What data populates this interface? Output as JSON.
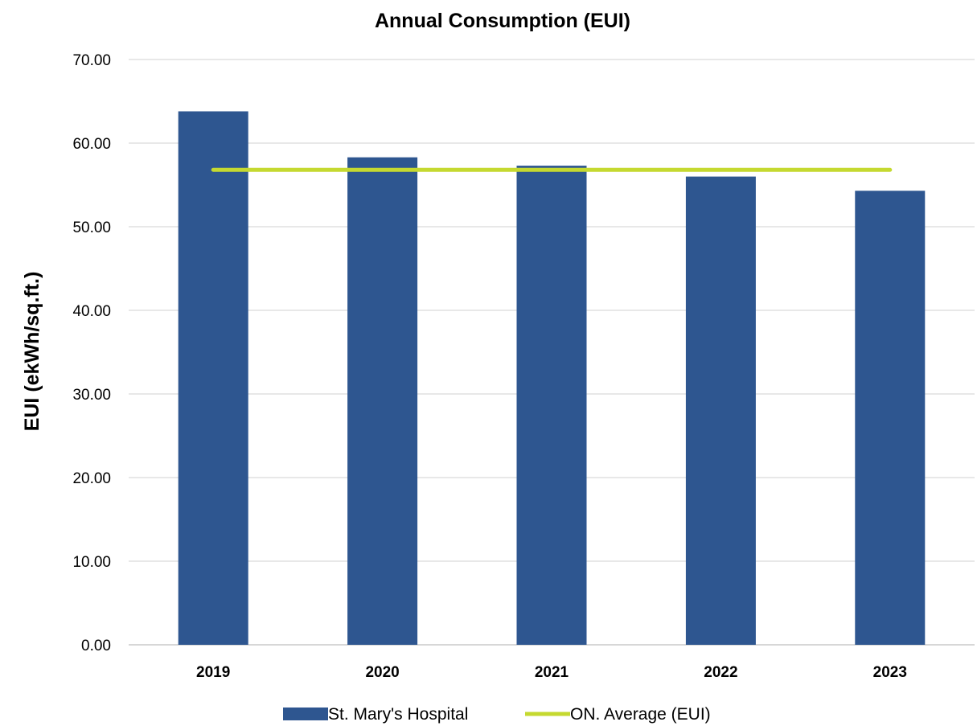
{
  "chart_data": {
    "type": "bar",
    "title": "Annual Consumption (EUI)",
    "xlabel": "",
    "ylabel": "EUI (ekWh/sq.ft.)",
    "categories": [
      "2019",
      "2020",
      "2021",
      "2022",
      "2023"
    ],
    "series": [
      {
        "name": "St. Mary's Hospital",
        "type": "bar",
        "color": "#2e5690",
        "values": [
          63.8,
          58.3,
          57.3,
          56.0,
          54.3
        ]
      },
      {
        "name": "ON. Average (EUI)",
        "type": "line",
        "color": "#c5d930",
        "values": [
          56.8,
          56.8,
          56.8,
          56.8,
          56.8
        ]
      }
    ],
    "ylim": [
      0,
      70
    ],
    "yticks": [
      "0.00",
      "10.00",
      "20.00",
      "30.00",
      "40.00",
      "50.00",
      "60.00",
      "70.00"
    ],
    "grid": true,
    "legend": "bottom"
  }
}
